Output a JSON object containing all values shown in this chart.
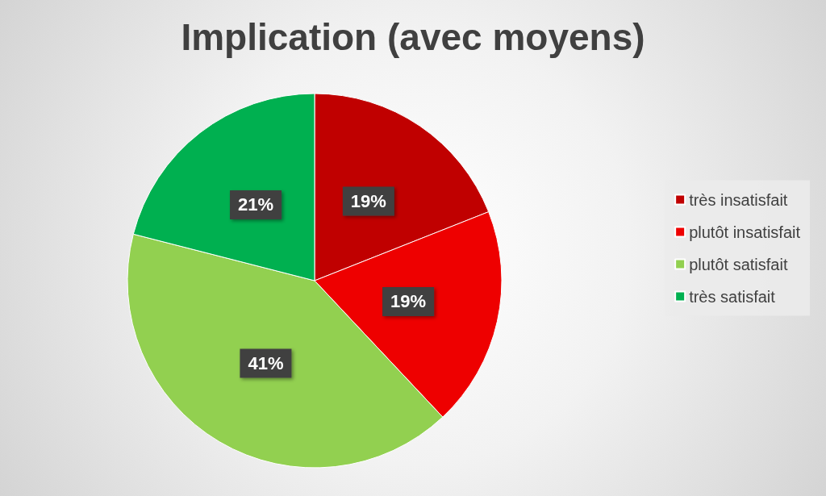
{
  "chart_data": {
    "type": "pie",
    "title": "Implication (avec moyens)",
    "categories": [
      "très insatisfait",
      "plutôt insatisfait",
      "plutôt satisfait",
      "très satisfait"
    ],
    "values": [
      19,
      19,
      41,
      21
    ],
    "value_labels": [
      "19%",
      "19%",
      "41%",
      "21%"
    ],
    "colors": [
      "#c00000",
      "#ee0000",
      "#92d050",
      "#00b050"
    ],
    "legend": "right"
  }
}
